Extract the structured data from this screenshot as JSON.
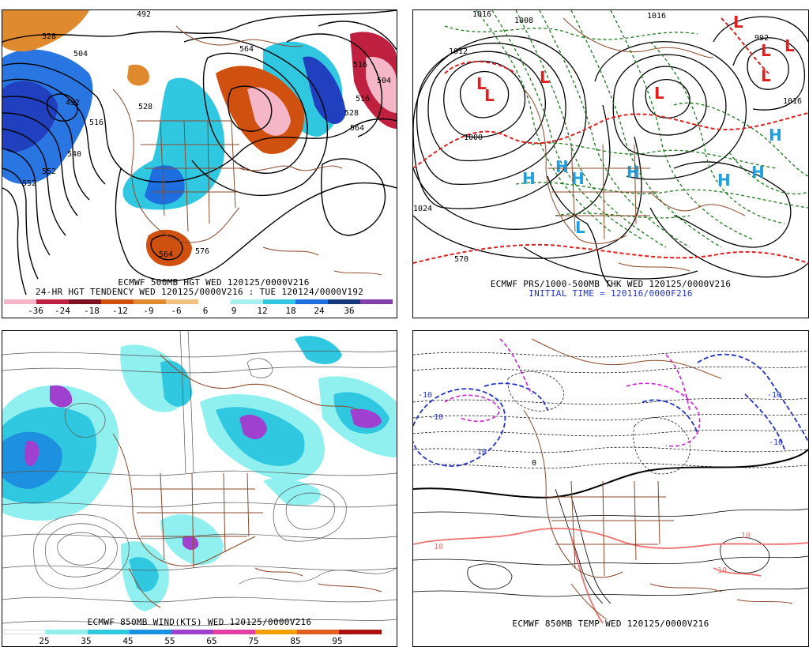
{
  "panels": {
    "p1": {
      "title": "ECMWF 500MB HGT WED 120125/0000V216",
      "subtitle": "24-HR HGT TENDENCY WED 120125/0000V216 : TUE 120124/0000V192",
      "contour_labels": [
        "492",
        "528",
        "504",
        "492",
        "516",
        "528",
        "540",
        "552",
        "564",
        "516",
        "504",
        "516",
        "528",
        "552",
        "564",
        "576",
        "564"
      ],
      "legend_values": [
        "-36",
        "-24",
        "-18",
        "-12",
        "-9",
        "-6",
        "6",
        "9",
        "12",
        "18",
        "24",
        "36"
      ],
      "legend_colors": [
        "#f5b7c7",
        "#c02040",
        "#7a1020",
        "#d05010",
        "#e08a30",
        "#f0c080",
        "#a8f0f0",
        "#30c8e0",
        "#1e6ee0",
        "#2040c0",
        "#17387a",
        "#8040a8"
      ]
    },
    "p2": {
      "title": "ECMWF PRS/1000-500MB THK WED 120125/0000V216",
      "subtitle": "INITIAL TIME = 120116/0000F216",
      "high_label": "H",
      "low_label": "L",
      "contour_labels": [
        "1016",
        "1008",
        "1016",
        "992",
        "1012",
        "1000",
        "1024",
        "570",
        "1016"
      ]
    },
    "p3": {
      "title": "ECMWF 850MB WIND(KTS) WED 120125/0000V216",
      "legend_values": [
        "25",
        "35",
        "45",
        "55",
        "65",
        "75",
        "85",
        "95"
      ],
      "legend_colors": [
        "#ffffff",
        "#90f0f0",
        "#30c8e0",
        "#1e90e0",
        "#a040d0",
        "#e040a0",
        "#f0a000",
        "#e06020",
        "#b01010"
      ]
    },
    "p4": {
      "title": "ECMWF 850MB TEMP WED 120125/0000V216",
      "contour_labels": [
        "-10",
        "-10",
        "-10",
        "-10",
        "-10",
        "0",
        "10",
        "10",
        "10"
      ]
    }
  }
}
